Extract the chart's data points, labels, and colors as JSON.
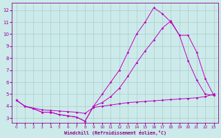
{
  "background_color": "#cceaea",
  "grid_color": "#aacccc",
  "line_color": "#bb00bb",
  "xlabel": "Windchill (Refroidissement éolien,°C)",
  "xlim_min": -0.5,
  "xlim_max": 23.5,
  "ylim_min": 2.6,
  "ylim_max": 12.6,
  "yticks": [
    3,
    4,
    5,
    6,
    7,
    8,
    9,
    10,
    11,
    12
  ],
  "xticks": [
    0,
    1,
    2,
    3,
    4,
    5,
    6,
    7,
    8,
    9,
    10,
    11,
    12,
    13,
    14,
    15,
    16,
    17,
    18,
    19,
    20,
    21,
    22,
    23
  ],
  "line_A_x": [
    0,
    1,
    2,
    3,
    4,
    5,
    6,
    7,
    8,
    9,
    10,
    11,
    12,
    13,
    14,
    15,
    16,
    17,
    18,
    19,
    20,
    21,
    22,
    23
  ],
  "line_A_y": [
    4.5,
    4.0,
    3.8,
    3.5,
    3.5,
    3.3,
    3.2,
    3.1,
    2.75,
    4.0,
    5.0,
    6.0,
    7.0,
    8.5,
    10.0,
    11.0,
    12.2,
    11.7,
    11.0,
    9.9,
    9.9,
    8.5,
    6.3,
    4.9
  ],
  "line_B_x": [
    0,
    1,
    2,
    3,
    4,
    5,
    6,
    7,
    8,
    9,
    10,
    11,
    12,
    13,
    14,
    15,
    16,
    17,
    18,
    19,
    20,
    21,
    22,
    23
  ],
  "line_B_y": [
    4.5,
    4.0,
    3.8,
    3.5,
    3.5,
    3.3,
    3.2,
    3.1,
    2.75,
    4.0,
    4.3,
    4.8,
    5.5,
    6.5,
    7.6,
    8.6,
    9.5,
    10.5,
    11.1,
    9.9,
    7.8,
    6.2,
    5.0,
    4.9
  ],
  "line_C_x": [
    0,
    1,
    2,
    3,
    4,
    5,
    6,
    7,
    8,
    9,
    10,
    11,
    12,
    13,
    14,
    15,
    16,
    17,
    18,
    19,
    20,
    21,
    22,
    23
  ],
  "line_C_y": [
    4.5,
    4.0,
    3.85,
    3.7,
    3.65,
    3.6,
    3.55,
    3.5,
    3.4,
    3.9,
    4.0,
    4.1,
    4.2,
    4.3,
    4.35,
    4.4,
    4.45,
    4.5,
    4.55,
    4.6,
    4.65,
    4.7,
    4.8,
    5.0
  ]
}
